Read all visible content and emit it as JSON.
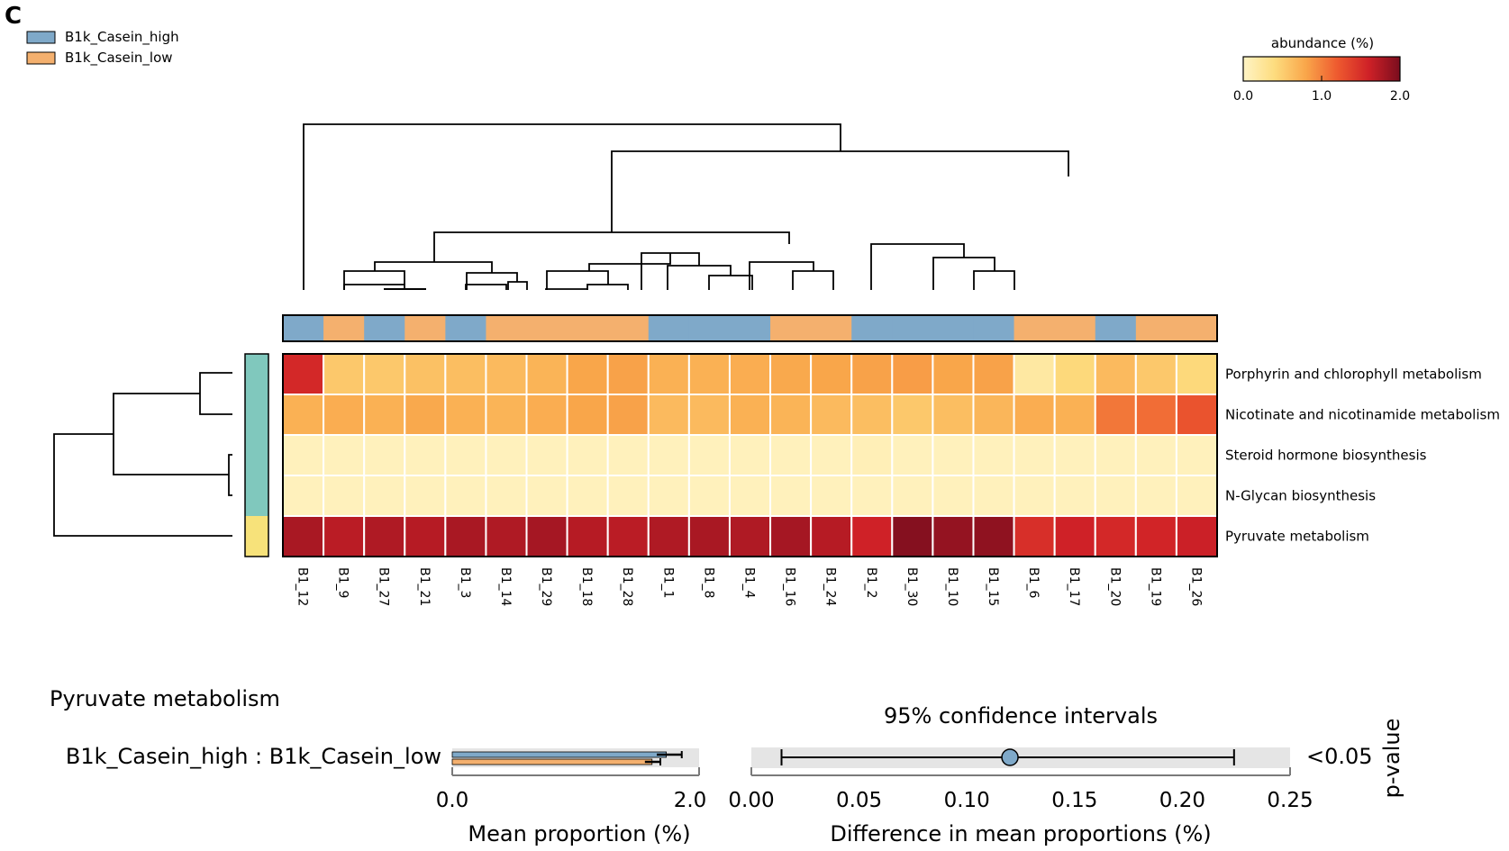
{
  "panel_label": "C",
  "legend": [
    {
      "label": "B1k_Casein_high",
      "color": "#7fa9c9"
    },
    {
      "label": "B1k_Casein_low",
      "color": "#f4b06e"
    }
  ],
  "colorbar": {
    "title": "abundance (%)",
    "ticks": [
      "0.0",
      "1.0",
      "2.0"
    ],
    "range": [
      0,
      2
    ],
    "colors": [
      "#fff4c5",
      "#fddc7e",
      "#f9a64a",
      "#ee5a2f",
      "#cf2127",
      "#7a0d1e"
    ]
  },
  "chart_data": [
    {
      "type": "heatmap",
      "title": "",
      "samples": [
        "B1_12",
        "B1_9",
        "B1_27",
        "B1_21",
        "B1_3",
        "B1_14",
        "B1_29",
        "B1_18",
        "B1_28",
        "B1_1",
        "B1_8",
        "B1_4",
        "B1_16",
        "B1_24",
        "B1_2",
        "B1_30",
        "B1_10",
        "B1_15",
        "B1_6",
        "B1_17",
        "B1_20",
        "B1_19",
        "B1_26"
      ],
      "sample_groups": [
        "high",
        "low",
        "high",
        "low",
        "high",
        "low",
        "low",
        "low",
        "low",
        "high",
        "high",
        "high",
        "low",
        "low",
        "high",
        "high",
        "high",
        "high",
        "low",
        "low",
        "high",
        "low",
        "low"
      ],
      "pathways": [
        "Porphyrin and chlorophyll metabolism",
        "Nicotinate and nicotinamide metabolism",
        "Steroid hormone biosynthesis",
        "N-Glycan biosynthesis",
        "Pyruvate metabolism"
      ],
      "row_cluster_colors": [
        "#80c8bd",
        "#80c8bd",
        "#80c8bd",
        "#80c8bd",
        "#f7e27a"
      ],
      "values": [
        [
          1.55,
          0.55,
          0.55,
          0.6,
          0.62,
          0.65,
          0.7,
          0.8,
          0.82,
          0.72,
          0.72,
          0.75,
          0.78,
          0.8,
          0.82,
          0.85,
          0.8,
          0.82,
          0.2,
          0.42,
          0.65,
          0.55,
          0.42
        ],
        [
          0.72,
          0.75,
          0.72,
          0.78,
          0.72,
          0.7,
          0.75,
          0.8,
          0.82,
          0.65,
          0.65,
          0.72,
          0.7,
          0.65,
          0.62,
          0.55,
          0.62,
          0.68,
          0.75,
          0.72,
          1.05,
          1.1,
          1.25
        ],
        [
          0.05,
          0.05,
          0.05,
          0.05,
          0.05,
          0.05,
          0.05,
          0.05,
          0.05,
          0.05,
          0.05,
          0.05,
          0.05,
          0.05,
          0.08,
          0.05,
          0.05,
          0.05,
          0.05,
          0.05,
          0.05,
          0.05,
          0.05
        ],
        [
          0.05,
          0.05,
          0.05,
          0.05,
          0.05,
          0.05,
          0.05,
          0.05,
          0.05,
          0.05,
          0.05,
          0.05,
          0.05,
          0.05,
          0.05,
          0.05,
          0.05,
          0.05,
          0.05,
          0.05,
          0.05,
          0.05,
          0.05
        ],
        [
          1.78,
          1.7,
          1.75,
          1.72,
          1.78,
          1.75,
          1.8,
          1.72,
          1.7,
          1.75,
          1.78,
          1.75,
          1.8,
          1.72,
          1.6,
          1.95,
          1.88,
          1.9,
          1.5,
          1.6,
          1.55,
          1.58,
          1.62
        ]
      ]
    },
    {
      "type": "bar",
      "title": "Pyruvate metabolism",
      "comparison_label": "B1k_Casein_high : B1k_Casein_low",
      "xlabel": "Mean proportion (%)",
      "xlim": [
        0,
        2.0
      ],
      "xticks": [
        "0.0",
        "2.0"
      ],
      "series": [
        {
          "name": "B1k_Casein_high",
          "value": 1.8,
          "ci": [
            1.72,
            1.93
          ]
        },
        {
          "name": "B1k_Casein_low",
          "value": 1.68,
          "ci": [
            1.62,
            1.75
          ]
        }
      ]
    },
    {
      "type": "scatter",
      "title": "95% confidence intervals",
      "xlabel": "Difference in mean proportions (%)",
      "xlim": [
        0,
        0.25
      ],
      "xticks": [
        "0.00",
        "0.05",
        "0.10",
        "0.15",
        "0.20",
        "0.25"
      ],
      "point": 0.12,
      "ci": [
        0.014,
        0.224
      ],
      "p_value": "<0.05",
      "p_value_label": "p-value"
    }
  ]
}
